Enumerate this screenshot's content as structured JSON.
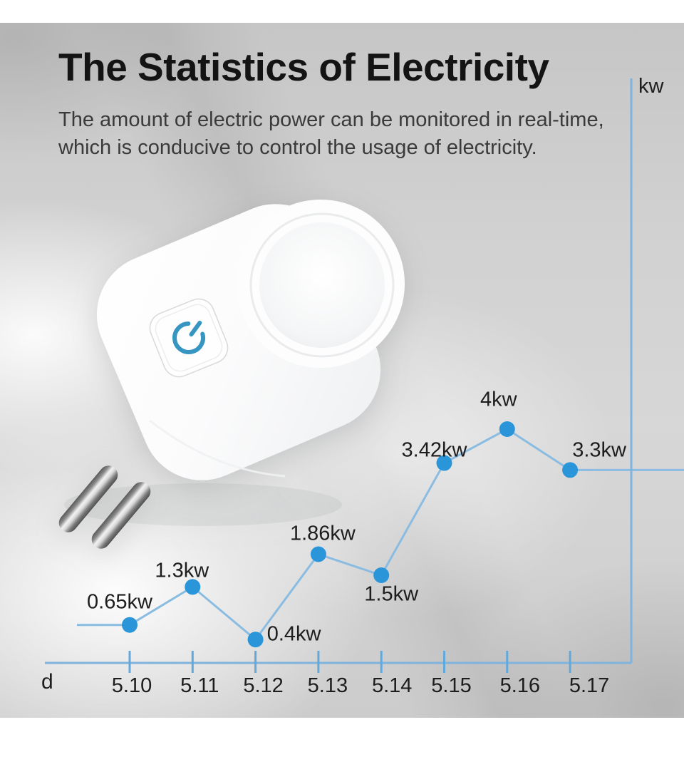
{
  "page": {
    "title": "The Statistics of Electricity",
    "subtitle_line1": "The amount of electric power can be monitored in real-time,",
    "subtitle_line2": "which is conducive to control the usage of electricity."
  },
  "colors": {
    "dot_blue": "#2b95d9",
    "line_blue": "#8abce2",
    "axis_blue": "#80b3dc",
    "tick_blue": "#63a8db",
    "power_icon_blue": "#3795c2",
    "title_text": "#141414",
    "subtitle_text": "#3a3a3a",
    "chart_text": "#1d1d1d"
  },
  "chart_data": {
    "type": "line",
    "title": "",
    "xlabel": "d",
    "ylabel": "kw",
    "categories": [
      "5.10",
      "5.11",
      "5.12",
      "5.13",
      "5.14",
      "5.15",
      "5.16",
      "5.17"
    ],
    "values": [
      0.65,
      1.3,
      0.4,
      1.86,
      1.5,
      3.42,
      4,
      3.3
    ],
    "point_labels": [
      "0.65kw",
      "1.3kw",
      "0.4kw",
      "1.86kw",
      "1.5kw",
      "3.42kw",
      "4kw",
      "3.3kw"
    ],
    "ylim": [
      0,
      10
    ],
    "grid": false,
    "legend": false
  }
}
